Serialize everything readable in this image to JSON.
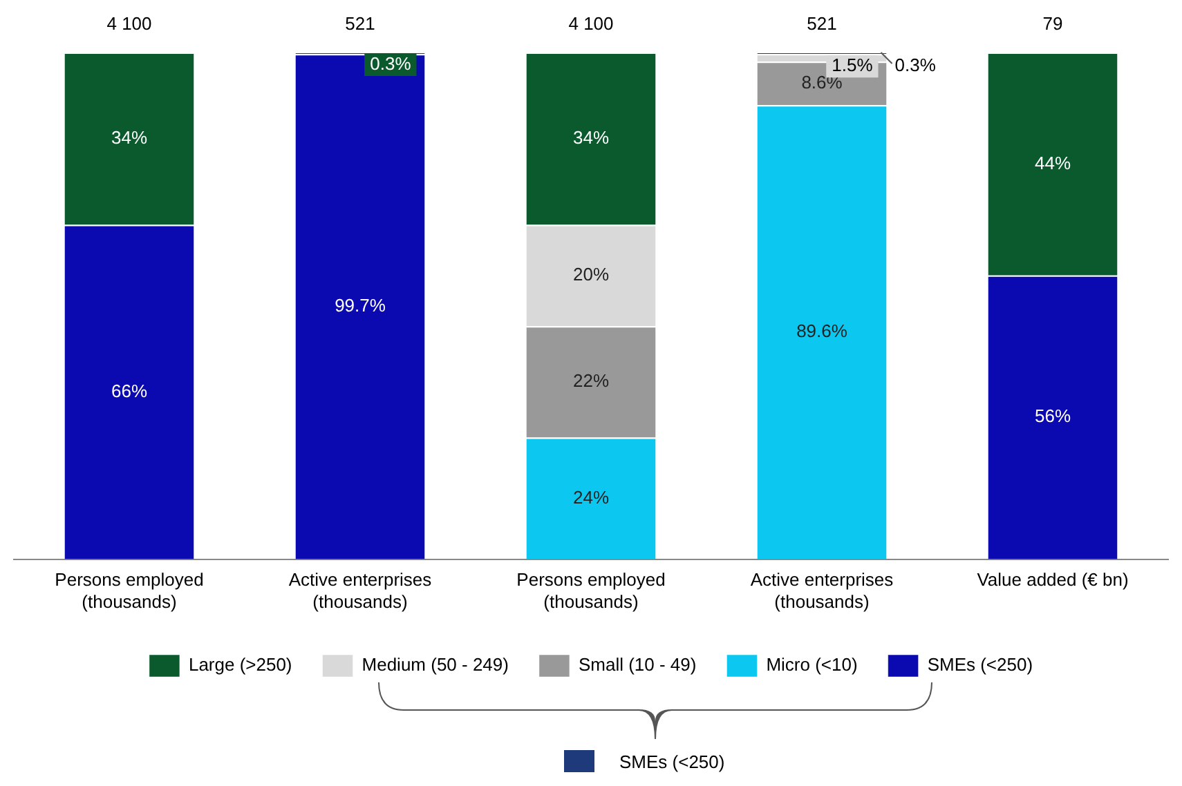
{
  "chart_data": {
    "type": "bar",
    "stacked": true,
    "legend": "bottom",
    "grid": false,
    "tick_labels": "x",
    "ylim": [
      0,
      100
    ],
    "categories": [
      "Persons employed (thousands)",
      "Active enterprises (thousands)",
      "Persons employed (thousands)",
      "Active enterprises (thousands)",
      "Value added (€ bn)"
    ],
    "series": [
      {
        "name": "SMEs (<250)",
        "color": "#0a0ab0",
        "values": [
          66,
          99.7,
          null,
          null,
          56
        ],
        "value_labels": [
          "66%",
          "99.7%",
          null,
          null,
          "56%"
        ]
      },
      {
        "name": "Micro (<10)",
        "color": "#0cc8f0",
        "values": [
          null,
          null,
          24,
          89.6,
          null
        ],
        "value_labels": [
          null,
          null,
          "24%",
          "89.6%",
          null
        ]
      },
      {
        "name": "Small (10 - 49)",
        "color": "#999999",
        "values": [
          null,
          null,
          22,
          8.6,
          null
        ],
        "value_labels": [
          null,
          null,
          "22%",
          "8.6%",
          null
        ]
      },
      {
        "name": "Medium (50 - 249)",
        "color": "#d9d9d9",
        "values": [
          null,
          null,
          20,
          1.5,
          null
        ],
        "value_labels": [
          null,
          null,
          "20%",
          "1.5%",
          null
        ]
      },
      {
        "name": "Large (>250)",
        "color": "#0b5a2e",
        "values": [
          34,
          0.3,
          34,
          0.3,
          44
        ],
        "value_labels": [
          "34%",
          "0.3%",
          "34%",
          "0.3%",
          "44%"
        ]
      }
    ],
    "annotations": [
      "4 100",
      "521",
      "4 100",
      "521",
      "79",
      "SMEs (<250)"
    ]
  }
}
